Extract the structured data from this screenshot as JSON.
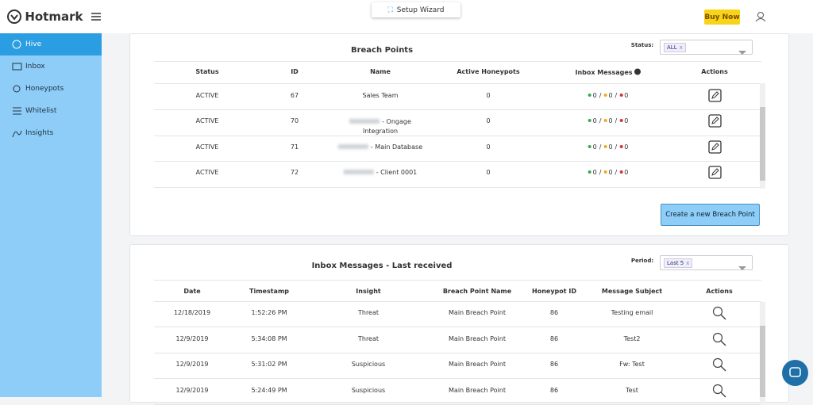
{
  "sidebar": {
    "brand": "Hotmark",
    "nav": [
      "Hive",
      "Inbox",
      "Honeypots",
      "Whitelist",
      "Insights"
    ]
  },
  "topbar": {
    "setup": "Setup Wizard",
    "buy": "Buy Now"
  },
  "breach": {
    "title": "Breach Points",
    "filter_label": "Status:",
    "filter_value": "ALL",
    "filter_clear": "x",
    "headers": [
      "Status",
      "ID",
      "Name",
      "Active Honeypots",
      "Inbox Messages",
      "Actions"
    ],
    "inbox_separator": "/",
    "rows": [
      {
        "status": "ACTIVE",
        "id": 67,
        "name": "Sales Team",
        "honeypots": 0,
        "inbox": [
          0,
          0,
          0
        ]
      },
      {
        "status": "ACTIVE",
        "id": 70,
        "name": "- Ongage Integration",
        "honeypots": 0,
        "inbox": [
          0,
          0,
          0
        ]
      },
      {
        "status": "ACTIVE",
        "id": 71,
        "name": "- Main Database",
        "honeypots": 0,
        "inbox": [
          0,
          0,
          0
        ]
      },
      {
        "status": "ACTIVE",
        "id": 72,
        "name": "- Client 0001",
        "honeypots": 0,
        "inbox": [
          0,
          0,
          0
        ]
      }
    ],
    "button": "Create a new Breach Point"
  },
  "inbox": {
    "title": "Inbox Messages - Last received",
    "filter_label": "Period:",
    "filter_value": "Last 5",
    "filter_clear": "x",
    "headers": [
      "Date",
      "Timestamp",
      "Insight",
      "Breach Point Name",
      "Honeypot ID",
      "Message Subject",
      "Actions"
    ],
    "rows": [
      [
        "12/18/2019",
        "1:52:26 PM",
        "Threat",
        "Main Breach Point",
        "86",
        "Testing email"
      ],
      [
        "12/9/2019",
        "5:34:08 PM",
        "Threat",
        "Main Breach Point",
        "86",
        "Test2"
      ],
      [
        "12/9/2019",
        "5:31:02 PM",
        "Suspicious",
        "Main Breach Point",
        "86",
        "Fw: Test"
      ],
      [
        "12/9/2019",
        "5:24:49 PM",
        "Suspicious",
        "Main Breach Point",
        "86",
        "Test"
      ]
    ]
  }
}
